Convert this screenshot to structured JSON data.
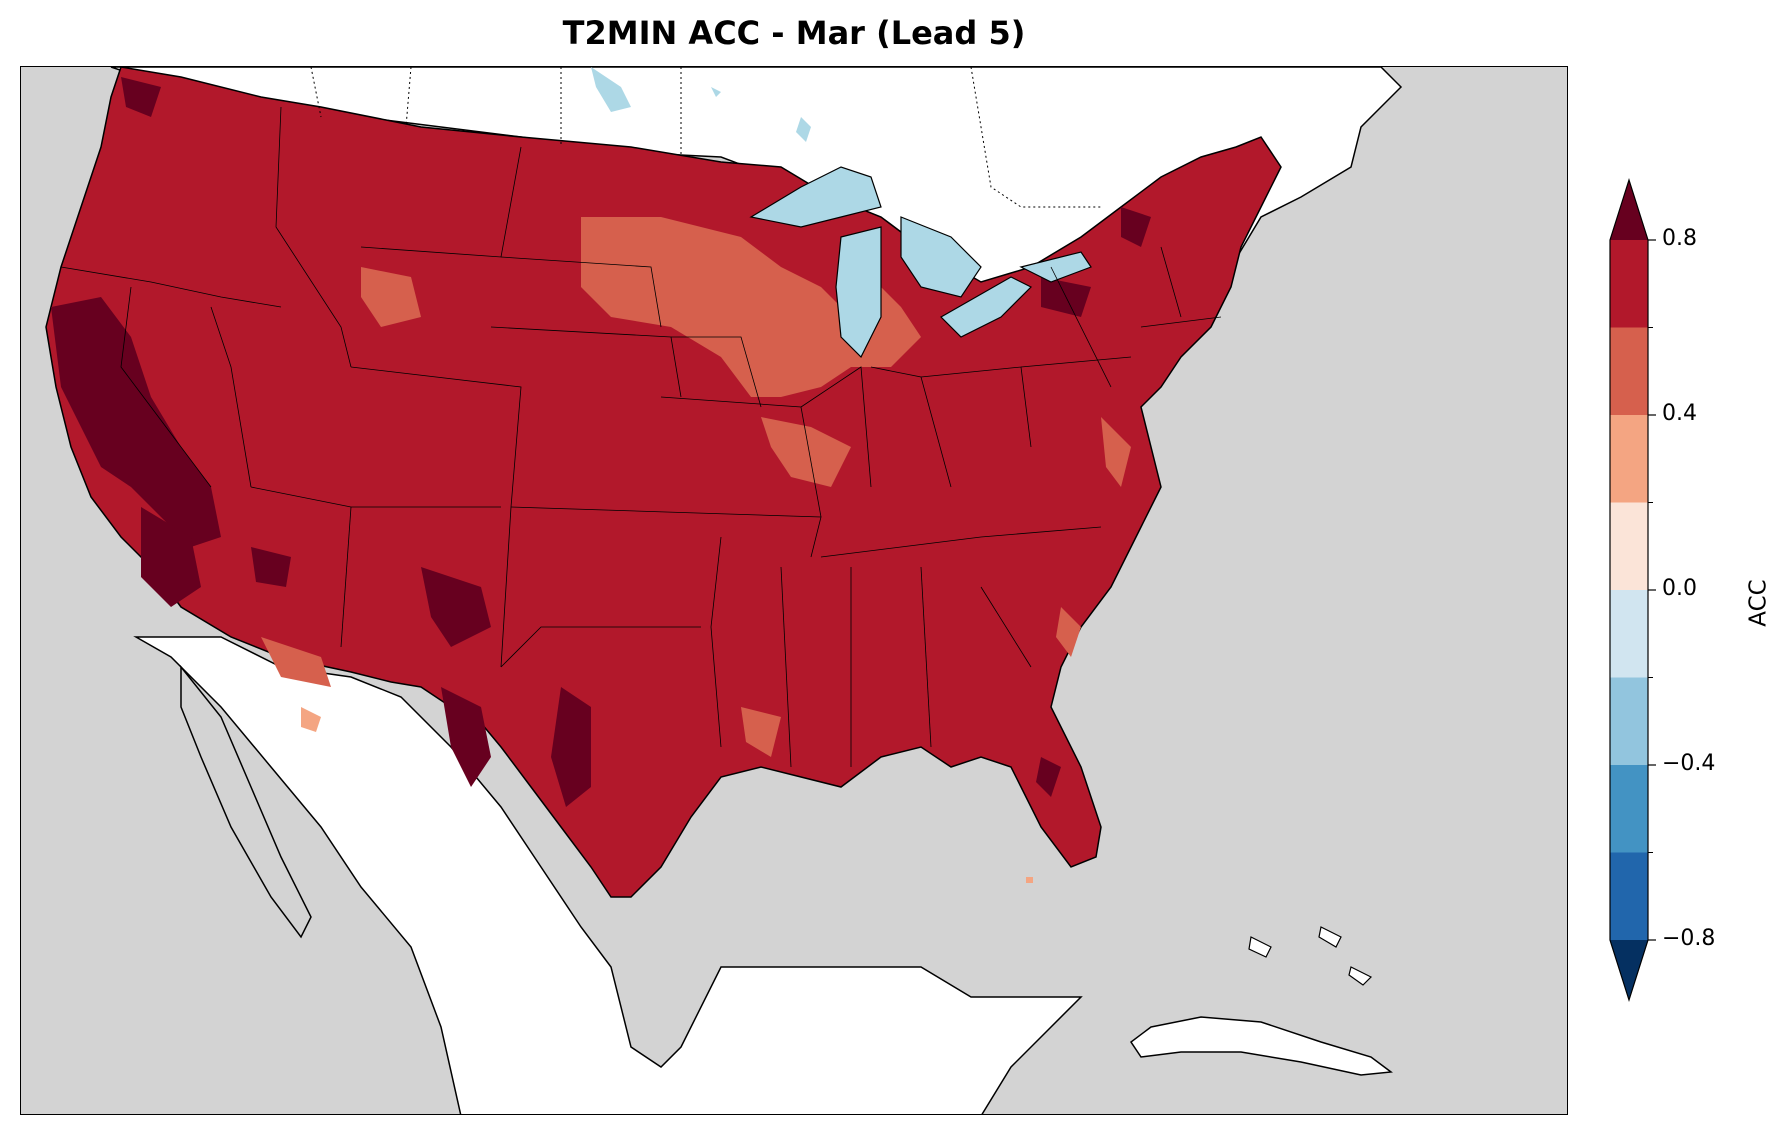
{
  "title": "T2MIN ACC - Mar (Lead 5)",
  "colorbar": {
    "label": "ACC",
    "ticks": [
      "0.8",
      "0.4",
      "0.0",
      "−0.4",
      "−0.8"
    ],
    "tick_values": [
      0.8,
      0.4,
      0.0,
      -0.4,
      -0.8
    ],
    "levels": [
      -1.0,
      -0.8,
      -0.6,
      -0.4,
      -0.2,
      0.0,
      0.2,
      0.4,
      0.6,
      0.8,
      1.0
    ],
    "colors": [
      "#053061",
      "#2166ac",
      "#4393c3",
      "#92c5de",
      "#d1e5f0",
      "#fbe4d8",
      "#f4a582",
      "#d6604d",
      "#b2182b",
      "#67001f"
    ],
    "extend": "both"
  },
  "map": {
    "region": "Contiguous United States",
    "variable": "T2MIN",
    "metric": "ACC",
    "month": "Mar",
    "lead": 5,
    "colors": {
      "ocean": "#d3d3d3",
      "land": "#ffffff",
      "lakes": "#add8e6",
      "dominant_acc": "#b2182b",
      "high_acc": "#67001f",
      "moderate_acc": "#d6604d",
      "low_acc": "#f4a582"
    },
    "dominant_acc_range": "0.6 to 0.8"
  }
}
